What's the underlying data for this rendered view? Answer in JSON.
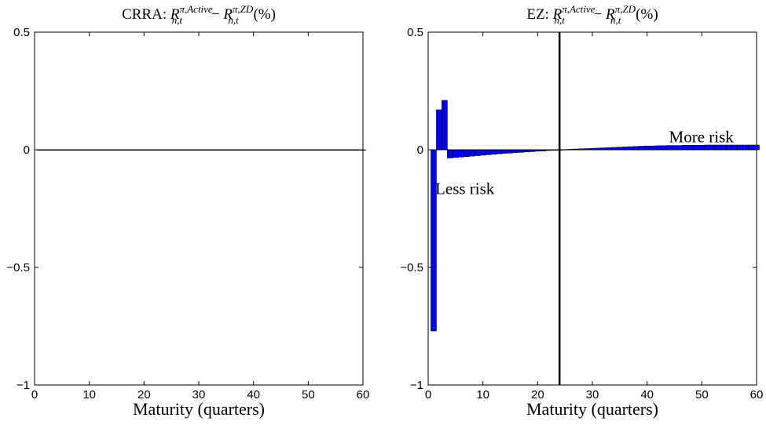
{
  "chart_data": [
    {
      "type": "bar",
      "title": {
        "prefix": "CRRA: ",
        "r1": "R",
        "sup1": "π,Active",
        "sub1": "n,t",
        "minus": " − ",
        "r2": "R",
        "sup2": "π,ZD",
        "sub2": "n,t",
        "unit": " (%)"
      },
      "xlabel": "Maturity (quarters)",
      "ylabel": "",
      "xlim": [
        0,
        60
      ],
      "ylim": [
        -1,
        0.5
      ],
      "xticks": [
        "0",
        "10",
        "20",
        "30",
        "40",
        "50",
        "60"
      ],
      "yticks": [
        "−1",
        "−0.5",
        "0",
        "0.5"
      ],
      "x": [
        1,
        2,
        3,
        4,
        5,
        6,
        7,
        8,
        9,
        10,
        11,
        12,
        13,
        14,
        15,
        16,
        17,
        18,
        19,
        20,
        21,
        22,
        23,
        24,
        25,
        26,
        27,
        28,
        29,
        30,
        31,
        32,
        33,
        34,
        35,
        36,
        37,
        38,
        39,
        40,
        41,
        42,
        43,
        44,
        45,
        46,
        47,
        48,
        49,
        50,
        51,
        52,
        53,
        54,
        55,
        56,
        57,
        58,
        59,
        60
      ],
      "values": [
        0,
        0,
        0,
        0,
        0,
        0,
        0,
        0,
        0,
        0,
        0,
        0,
        0,
        0,
        0,
        0,
        0,
        0,
        0,
        0,
        0,
        0,
        0,
        0,
        0,
        0,
        0,
        0,
        0,
        0,
        0,
        0,
        0,
        0,
        0,
        0,
        0,
        0,
        0,
        0,
        0,
        0,
        0,
        0,
        0,
        0,
        0,
        0,
        0,
        0,
        0,
        0,
        0,
        0,
        0,
        0,
        0,
        0,
        0,
        0
      ],
      "bar_color": "#0000ff",
      "grid": false
    },
    {
      "type": "bar",
      "title": {
        "prefix": "EZ: ",
        "r1": "R",
        "sup1": "π,Active",
        "sub1": "n,t",
        "minus": " − ",
        "r2": "R",
        "sup2": "π,ZD",
        "sub2": "n,t",
        "unit": " (%)"
      },
      "xlabel": "Maturity (quarters)",
      "ylabel": "",
      "xlim": [
        0,
        60
      ],
      "ylim": [
        -1,
        0.5
      ],
      "xticks": [
        "0",
        "10",
        "20",
        "30",
        "40",
        "50",
        "60"
      ],
      "yticks": [
        "−1",
        "−0.5",
        "0",
        "0.5"
      ],
      "x": [
        1,
        2,
        3,
        4,
        5,
        6,
        7,
        8,
        9,
        10,
        11,
        12,
        13,
        14,
        15,
        16,
        17,
        18,
        19,
        20,
        21,
        22,
        23,
        24,
        25,
        26,
        27,
        28,
        29,
        30,
        31,
        32,
        33,
        34,
        35,
        36,
        37,
        38,
        39,
        40,
        41,
        42,
        43,
        44,
        45,
        46,
        47,
        48,
        49,
        50,
        51,
        52,
        53,
        54,
        55,
        56,
        57,
        58,
        59,
        60
      ],
      "values": [
        -0.77,
        0.17,
        0.21,
        -0.035,
        -0.033,
        -0.031,
        -0.029,
        -0.027,
        -0.025,
        -0.023,
        -0.021,
        -0.019,
        -0.017,
        -0.015,
        -0.014,
        -0.012,
        -0.011,
        -0.009,
        -0.008,
        -0.006,
        -0.005,
        -0.003,
        -0.002,
        -0.001,
        0.001,
        0.002,
        0.003,
        0.004,
        0.005,
        0.006,
        0.007,
        0.008,
        0.009,
        0.01,
        0.011,
        0.012,
        0.013,
        0.014,
        0.015,
        0.016,
        0.016,
        0.017,
        0.017,
        0.018,
        0.018,
        0.018,
        0.019,
        0.019,
        0.019,
        0.019,
        0.02,
        0.02,
        0.02,
        0.02,
        0.02,
        0.02,
        0.02,
        0.02,
        0.02,
        0.02
      ],
      "bar_color": "#0000ff",
      "vline_x": 24,
      "annotations": [
        {
          "text": "Less risk",
          "x": 1.3,
          "y": -0.165
        },
        {
          "text": "More risk",
          "x": 44,
          "y": 0.055
        }
      ],
      "grid": false
    }
  ]
}
